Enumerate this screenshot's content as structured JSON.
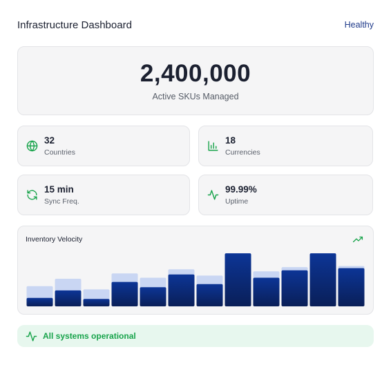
{
  "header": {
    "title": "Infrastructure Dashboard",
    "status": "Healthy"
  },
  "hero": {
    "value": "2,400,000",
    "label": "Active SKUs Managed"
  },
  "stats": [
    {
      "icon": "globe-icon",
      "value": "32",
      "label": "Countries"
    },
    {
      "icon": "bar-chart-icon",
      "value": "18",
      "label": "Currencies"
    },
    {
      "icon": "refresh-icon",
      "value": "15 min",
      "label": "Sync Freq."
    },
    {
      "icon": "activity-icon",
      "value": "99.99%",
      "label": "Uptime"
    }
  ],
  "chart": {
    "title": "Inventory Velocity",
    "trend_icon": "trending-up-icon"
  },
  "chart_data": {
    "type": "bar",
    "categories": [
      "",
      "",
      "",
      "",
      "",
      "",
      "",
      "",
      "",
      "",
      "",
      ""
    ],
    "series": [
      {
        "values": [
          19,
          26,
          16,
          31,
          27,
          35,
          29,
          50,
          33,
          37,
          50,
          38
        ]
      },
      {
        "values": [
          8,
          15,
          7,
          23,
          18,
          30,
          21,
          50,
          27,
          34,
          50,
          36
        ]
      }
    ],
    "ylim": [
      0,
      52
    ]
  },
  "banner": {
    "icon": "activity-icon",
    "text": "All systems operational"
  },
  "colors": {
    "accent": "#17a34a",
    "navy": "#0d2c82",
    "light_bar": "#c9d6f3",
    "title": "#1f3a8a"
  }
}
